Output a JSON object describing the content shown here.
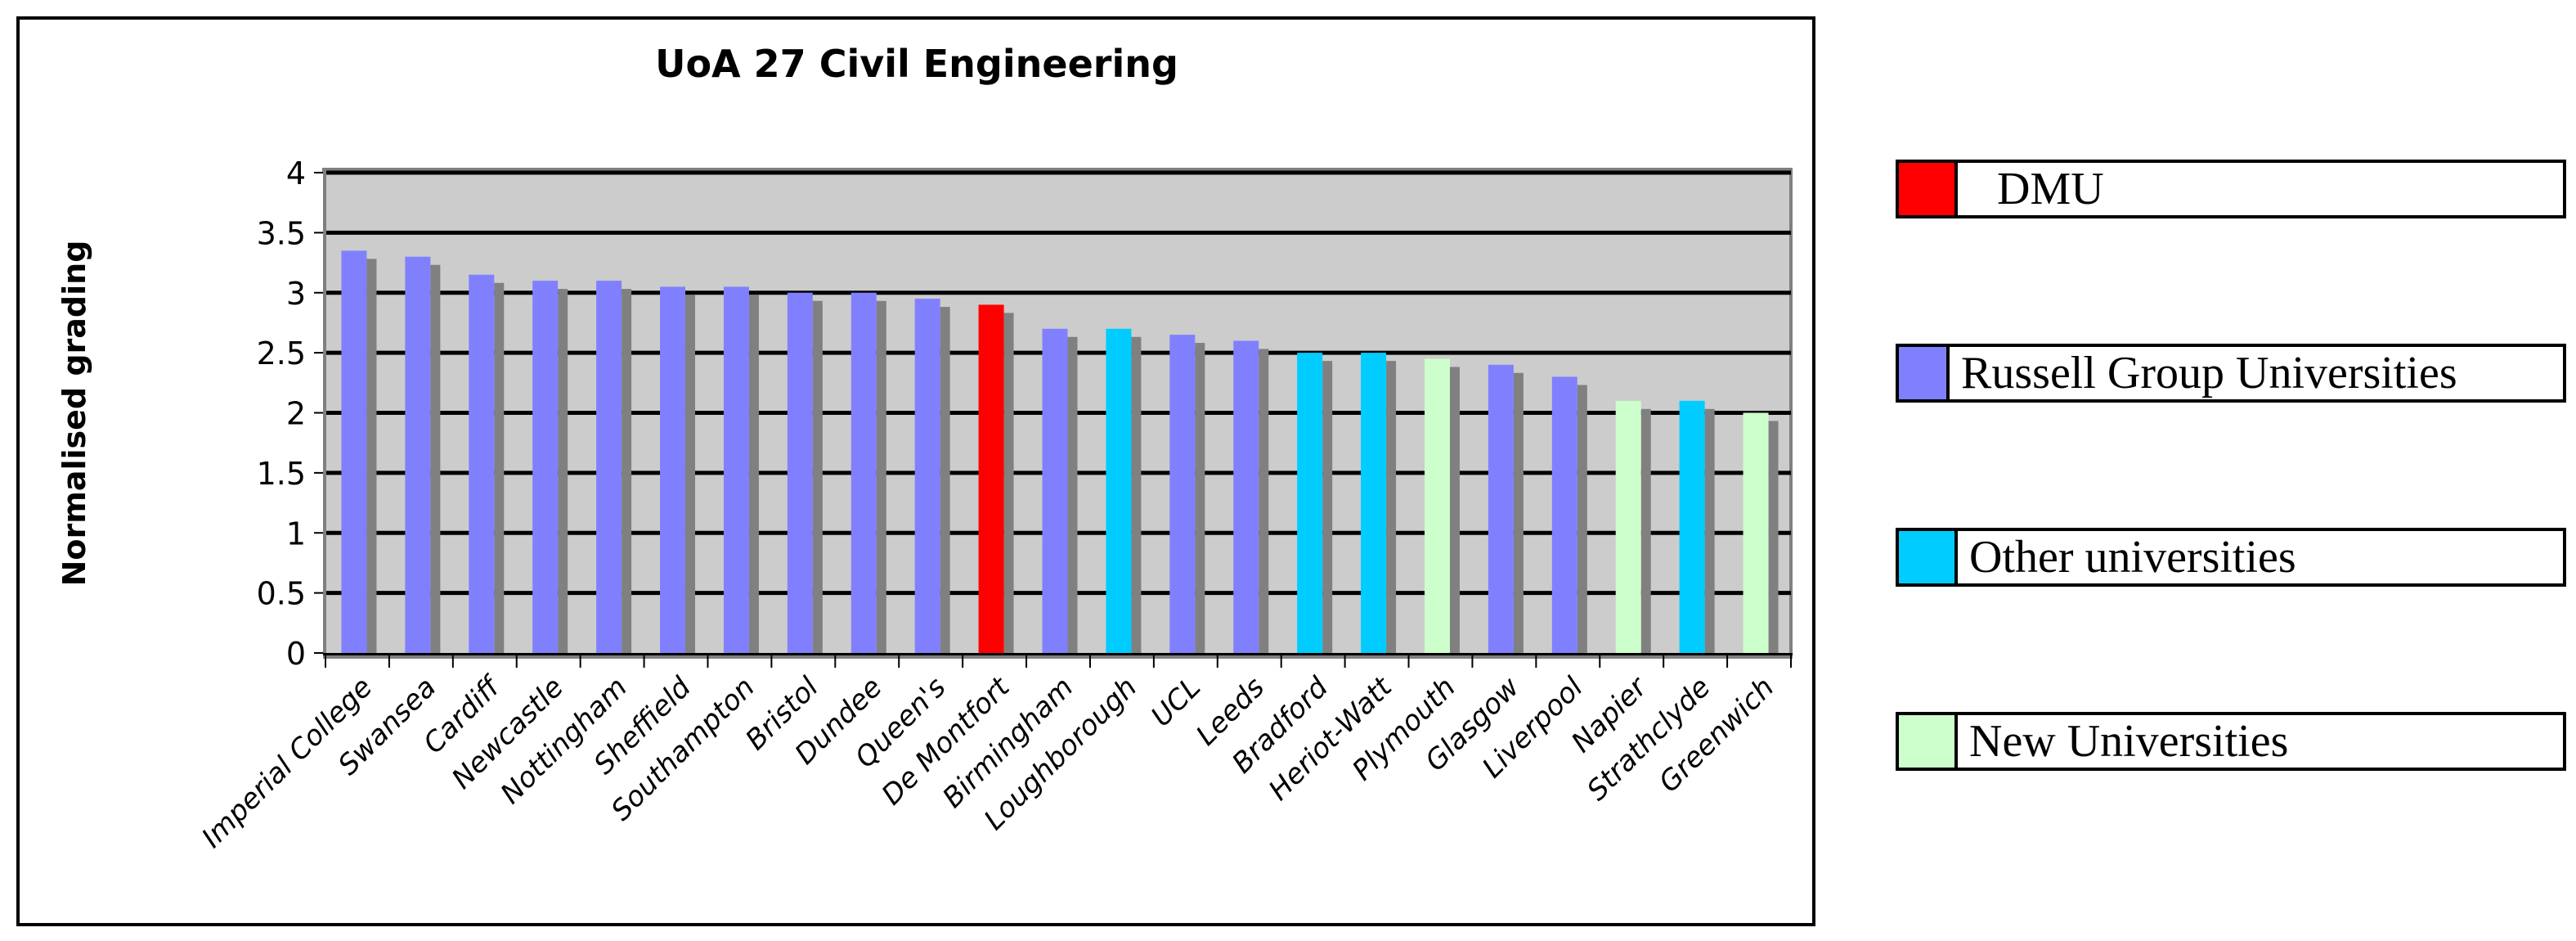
{
  "chart_data": {
    "type": "bar",
    "title": "UoA 27 Civil Engineering",
    "xlabel": "",
    "ylabel": "Normalised grading",
    "ylim": [
      0,
      4
    ],
    "yticks": [
      "0",
      "0.5",
      "1",
      "1.5",
      "2",
      "2.5",
      "3",
      "3.5",
      "4"
    ],
    "ytick_values": [
      0,
      0.5,
      1,
      1.5,
      2,
      2.5,
      3,
      3.5,
      4
    ],
    "grid": true,
    "legend_position": "right",
    "categories": [
      "Imperial College",
      "Swansea",
      "Cardiff",
      "Newcastle",
      "Nottingham",
      "Sheffield",
      "Southampton",
      "Bristol",
      "Dundee",
      "Queen's",
      "De Montfort",
      "Birmingham",
      "Loughborough",
      "UCL",
      "Leeds",
      "Bradford",
      "Heriot-Watt",
      "Plymouth",
      "Glasgow",
      "Liverpool",
      "Napier",
      "Strathclyde",
      "Greenwich"
    ],
    "values": [
      3.35,
      3.3,
      3.15,
      3.1,
      3.1,
      3.05,
      3.05,
      3.0,
      3.0,
      2.95,
      2.9,
      2.7,
      2.7,
      2.65,
      2.6,
      2.5,
      2.5,
      2.45,
      2.4,
      2.3,
      2.1,
      2.1,
      2.0
    ],
    "groups": [
      "russell",
      "russell",
      "russell",
      "russell",
      "russell",
      "russell",
      "russell",
      "russell",
      "russell",
      "russell",
      "dmu",
      "russell",
      "other",
      "russell",
      "russell",
      "other",
      "other",
      "new",
      "russell",
      "russell",
      "new",
      "other",
      "new"
    ],
    "legend": [
      {
        "key": "dmu",
        "label": "DMU",
        "color": "#ff0000"
      },
      {
        "key": "russell",
        "label": "Russell Group Universities",
        "color": "#8080ff"
      },
      {
        "key": "other",
        "label": "Other universities",
        "color": "#00ccff"
      },
      {
        "key": "new",
        "label": "New Universities",
        "color": "#ccffcc"
      }
    ],
    "colors": {
      "plot_background": "#cccccc",
      "gridline": "#000000",
      "bar_shadow": "#808080"
    }
  }
}
